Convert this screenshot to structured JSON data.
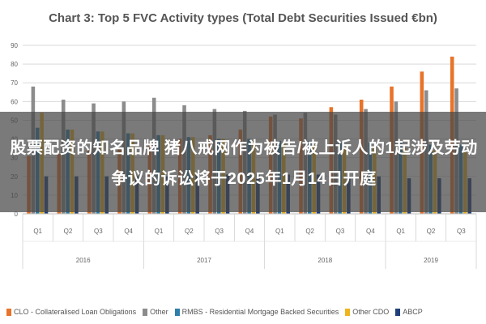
{
  "chart_data": {
    "type": "bar",
    "title": "Chart 3: Top 5 FVC Activity types (Total Debt Securities Issued €bn)",
    "xlabel": "",
    "ylabel": "",
    "ylim": [
      0,
      90
    ],
    "yticks": [
      0,
      10,
      20,
      30,
      40,
      50,
      60,
      70,
      80,
      90
    ],
    "grid": true,
    "legend_position": "bottom",
    "categories": [
      "Q1",
      "Q2",
      "Q3",
      "Q4",
      "Q1",
      "Q2",
      "Q3",
      "Q4",
      "Q1",
      "Q2",
      "Q3",
      "Q4",
      "Q1",
      "Q2",
      "Q3"
    ],
    "groups": [
      {
        "label": "2016",
        "start": 0,
        "end": 3
      },
      {
        "label": "2017",
        "start": 4,
        "end": 7
      },
      {
        "label": "2018",
        "start": 8,
        "end": 11
      },
      {
        "label": "2019",
        "start": 12,
        "end": 14
      }
    ],
    "series": [
      {
        "name": "CLO - Collateralised Loan Obligations",
        "color": "#e8732a",
        "values": [
          31,
          32,
          34,
          35,
          38,
          40,
          42,
          45,
          52,
          51,
          57,
          61,
          68,
          76,
          84
        ]
      },
      {
        "name": "Other",
        "color": "#8c8c8c",
        "values": [
          68,
          61,
          59,
          60,
          62,
          58,
          56,
          55,
          53,
          54,
          53,
          56,
          60,
          66,
          67
        ]
      },
      {
        "name": "RMBS - Residential Mortgage Backed Securities",
        "color": "#2f7fa8",
        "values": [
          46,
          45,
          44,
          43,
          42,
          41,
          40,
          40,
          39,
          39,
          38,
          38,
          38,
          37,
          37
        ]
      },
      {
        "name": "Other CDO",
        "color": "#f0b41e",
        "values": [
          54,
          45,
          44,
          43,
          42,
          41,
          40,
          39,
          38,
          37,
          36,
          36,
          35,
          34,
          34
        ]
      },
      {
        "name": "ABCP",
        "color": "#1f3f7a",
        "values": [
          20,
          20,
          20,
          20,
          20,
          21,
          21,
          21,
          21,
          21,
          20,
          20,
          19,
          19,
          19
        ]
      }
    ]
  },
  "overlay": {
    "text": "股票配资的知名品牌 猪八戒网作为被告/被上诉人的1起涉及劳动争议的诉讼将于2025年1月14日开庭"
  }
}
